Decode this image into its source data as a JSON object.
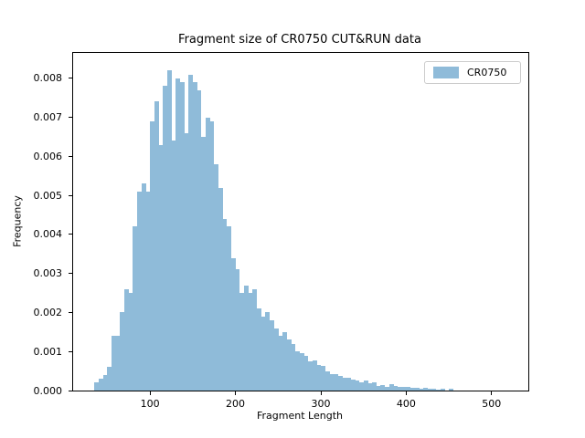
{
  "figure": {
    "title": "Fragment size of CR0750 CUT&RUN data",
    "xlabel": "Fragment Length",
    "ylabel": "Frequency"
  },
  "legend": {
    "entries": [
      {
        "label": "CR0750",
        "color": "#8fbbd9"
      }
    ],
    "position": "upper right"
  },
  "colors": {
    "bar_fill": "#8fbbd9",
    "axis": "#000000",
    "legend_border": "#cccccc",
    "background": "#ffffff",
    "text": "#000000"
  },
  "chart_data": {
    "type": "bar",
    "subtype": "histogram",
    "title": "Fragment size of CR0750 CUT&RUN data",
    "xlabel": "Fragment Length",
    "ylabel": "Frequency",
    "series_name": "CR0750",
    "grid": false,
    "legend_position": "upper right",
    "bin_width": 5,
    "xlim": [
      10,
      543
    ],
    "ylim": [
      0,
      0.00865
    ],
    "xticks": [
      100,
      200,
      300,
      400,
      500
    ],
    "xtick_labels": [
      "100",
      "200",
      "300",
      "400",
      "500"
    ],
    "yticks": [
      0.0,
      0.001,
      0.002,
      0.003,
      0.004,
      0.005,
      0.006,
      0.007,
      0.008
    ],
    "ytick_labels": [
      "0.000",
      "0.001",
      "0.002",
      "0.003",
      "0.004",
      "0.005",
      "0.006",
      "0.007",
      "0.008"
    ],
    "bin_left_edges": [
      35,
      40,
      45,
      50,
      55,
      60,
      65,
      70,
      75,
      80,
      85,
      90,
      95,
      100,
      105,
      110,
      115,
      120,
      125,
      130,
      135,
      140,
      145,
      150,
      155,
      160,
      165,
      170,
      175,
      180,
      185,
      190,
      195,
      200,
      205,
      210,
      215,
      220,
      225,
      230,
      235,
      240,
      245,
      250,
      255,
      260,
      265,
      270,
      275,
      280,
      285,
      290,
      295,
      300,
      305,
      310,
      315,
      320,
      325,
      330,
      335,
      340,
      345,
      350,
      355,
      360,
      365,
      370,
      375,
      380,
      385,
      390,
      395,
      400,
      405,
      410,
      415,
      420,
      425,
      430,
      435,
      440,
      445,
      450
    ],
    "values": [
      0.0002,
      0.0003,
      0.0004,
      0.0006,
      0.0014,
      0.0014,
      0.002,
      0.0026,
      0.0025,
      0.0042,
      0.0051,
      0.0053,
      0.0051,
      0.0069,
      0.0074,
      0.0063,
      0.0078,
      0.0082,
      0.0064,
      0.008,
      0.0079,
      0.0066,
      0.0081,
      0.0079,
      0.0077,
      0.0065,
      0.007,
      0.0069,
      0.0058,
      0.0052,
      0.0044,
      0.0042,
      0.0034,
      0.0031,
      0.0025,
      0.0027,
      0.0025,
      0.0026,
      0.0021,
      0.0019,
      0.002,
      0.0018,
      0.0016,
      0.0014,
      0.0015,
      0.0013,
      0.0012,
      0.001,
      0.00095,
      0.00088,
      0.00076,
      0.00078,
      0.00065,
      0.00062,
      0.00049,
      0.00041,
      0.00043,
      0.00037,
      0.00032,
      0.00032,
      0.00027,
      0.00025,
      0.0002,
      0.00026,
      0.00018,
      0.0002,
      0.00012,
      0.00015,
      0.0001,
      0.00016,
      0.00012,
      0.0001,
      9e-05,
      0.0001,
      7e-05,
      8e-05,
      5e-05,
      7e-05,
      4e-05,
      5e-05,
      2e-05,
      4e-05,
      0.0,
      4e-05
    ]
  }
}
